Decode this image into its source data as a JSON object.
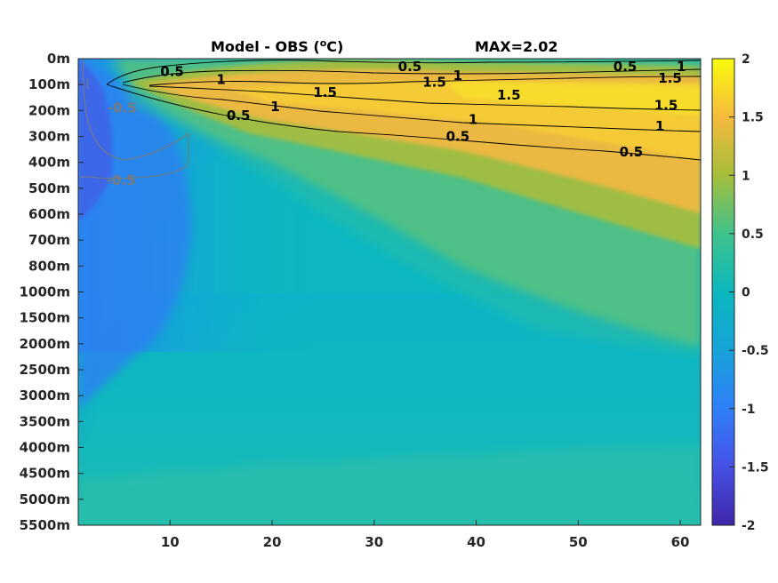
{
  "chart_data": {
    "type": "heatmap",
    "title": "Model - OBS (",
    "title_sup": "o",
    "title_end": "C)",
    "max_label": "MAX=2.02",
    "x_ticks": [
      10,
      20,
      30,
      40,
      50,
      60
    ],
    "x_range": [
      1,
      62
    ],
    "y_tick_labels": [
      "0m",
      "100m",
      "200m",
      "300m",
      "400m",
      "500m",
      "600m",
      "700m",
      "800m",
      "1000m",
      "1500m",
      "2000m",
      "2500m",
      "3000m",
      "3500m",
      "4000m",
      "4500m",
      "5000m",
      "5500m"
    ],
    "colorbar": {
      "range": [
        -2,
        2
      ],
      "ticks": [
        "2",
        "1.5",
        "1",
        "0.5",
        "0",
        "-0.5",
        "-1",
        "-1.5",
        "-2"
      ],
      "colormap": "parula"
    },
    "contour_labels": [
      {
        "text": "0.5",
        "x": 10.2,
        "depth": "50m"
      },
      {
        "text": "1",
        "x": 15.0,
        "depth": "80m"
      },
      {
        "text": "0.5",
        "x": 33.5,
        "depth": "30m"
      },
      {
        "text": "1",
        "x": 38.2,
        "depth": "65m"
      },
      {
        "text": "1.5",
        "x": 35.9,
        "depth": "90m"
      },
      {
        "text": "1.5",
        "x": 25.2,
        "depth": "130m"
      },
      {
        "text": "1.5",
        "x": 43.2,
        "depth": "140m"
      },
      {
        "text": "1",
        "x": 20.3,
        "depth": "185m"
      },
      {
        "text": "0.5",
        "x": 16.7,
        "depth": "220m"
      },
      {
        "text": "1",
        "x": 39.7,
        "depth": "235m"
      },
      {
        "text": "0.5",
        "x": 38.2,
        "depth": "300m"
      },
      {
        "text": "0.5",
        "x": 54.6,
        "depth": "30m"
      },
      {
        "text": "1",
        "x": 60.1,
        "depth": "30m"
      },
      {
        "text": "1.5",
        "x": 59.0,
        "depth": "75m"
      },
      {
        "text": "1.5",
        "x": 58.6,
        "depth": "180m"
      },
      {
        "text": "1",
        "x": 58.0,
        "depth": "260m"
      },
      {
        "text": "0.5",
        "x": 55.2,
        "depth": "360m"
      },
      {
        "text": "-0.5",
        "x": 5.3,
        "depth": "190m"
      },
      {
        "text": "-0.5",
        "x": 5.2,
        "depth": "470m"
      }
    ]
  }
}
